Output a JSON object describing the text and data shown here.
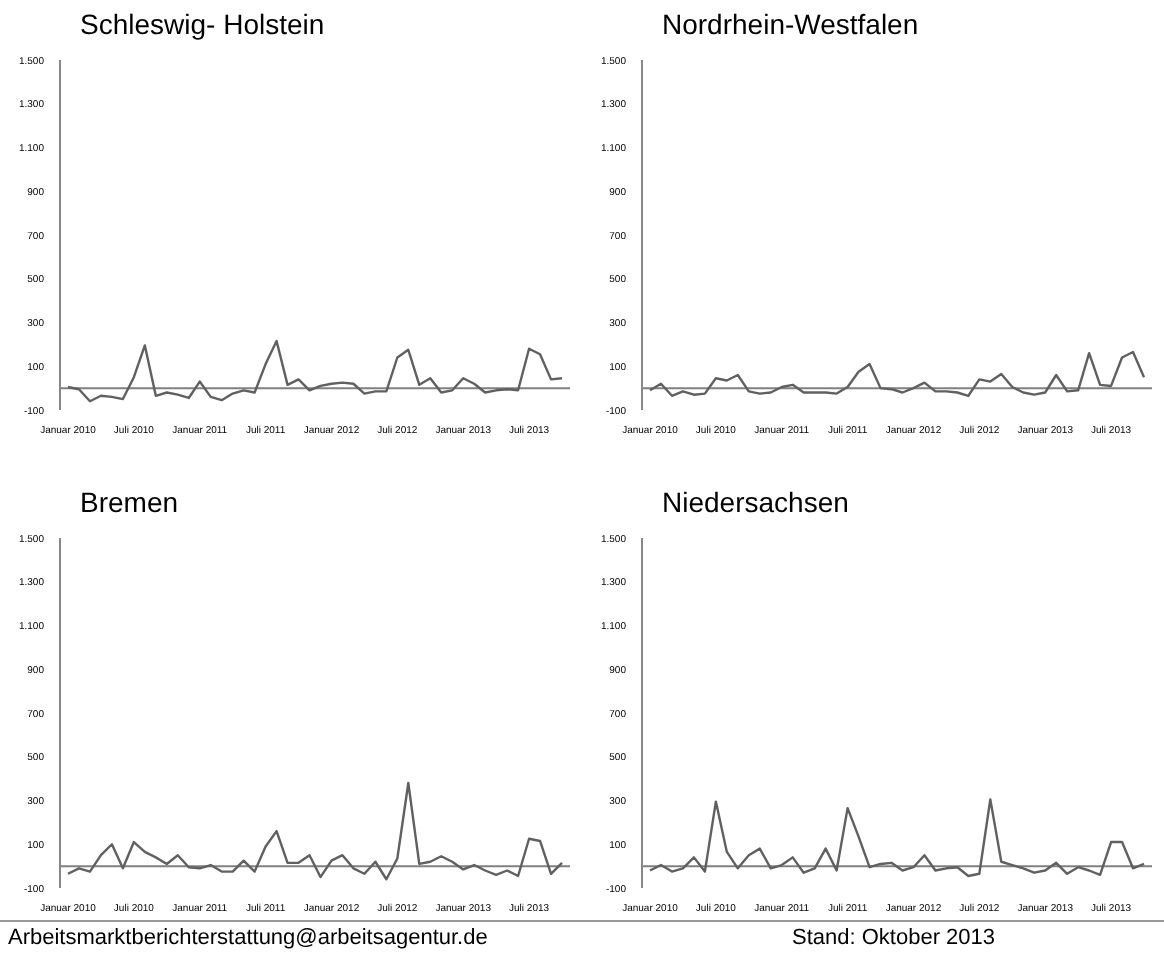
{
  "chart_data": [
    {
      "type": "line",
      "title": "Schleswig- Holstein",
      "categories": [
        "Januar 2010",
        null,
        null,
        null,
        null,
        null,
        "Juli 2010",
        null,
        null,
        null,
        null,
        null,
        "Januar 2011",
        null,
        null,
        null,
        null,
        null,
        "Juli 2011",
        null,
        null,
        null,
        null,
        null,
        "Januar 2012",
        null,
        null,
        null,
        null,
        null,
        "Juli 2012",
        null,
        null,
        null,
        null,
        null,
        "Januar 2013",
        null,
        null,
        null,
        null,
        null,
        "Juli 2013",
        null,
        null,
        null
      ],
      "series": [
        {
          "color": "#606060",
          "values": [
            5,
            -5,
            -60,
            -35,
            -40,
            -50,
            50,
            195,
            -35,
            -20,
            -30,
            -45,
            30,
            -40,
            -55,
            -25,
            -10,
            -20,
            110,
            215,
            15,
            40,
            -10,
            10,
            20,
            25,
            20,
            -25,
            -15,
            -15,
            140,
            175,
            15,
            45,
            -20,
            -10,
            45,
            20,
            -20,
            -10,
            -5,
            -10,
            180,
            155,
            40,
            45
          ]
        }
      ],
      "ylim": [
        -100,
        1500
      ],
      "yticks": [
        {
          "value": -100,
          "label": "-100"
        },
        100,
        300,
        500,
        700,
        900,
        {
          "value": 1100,
          "label": "1.100"
        },
        {
          "value": 1300,
          "label": "1.300"
        },
        {
          "value": 1500,
          "label": "1.500"
        }
      ],
      "ref_lines": [
        {
          "axis": "y",
          "value": 0,
          "color": "#808080"
        }
      ]
    },
    {
      "type": "line",
      "title": "Nordrhein-Westfalen",
      "categories": [
        "Januar 2010",
        null,
        null,
        null,
        null,
        null,
        "Juli 2010",
        null,
        null,
        null,
        null,
        null,
        "Januar 2011",
        null,
        null,
        null,
        null,
        null,
        "Juli 2011",
        null,
        null,
        null,
        null,
        null,
        "Januar 2012",
        null,
        null,
        null,
        null,
        null,
        "Juli 2012",
        null,
        null,
        null,
        null,
        null,
        "Januar 2013",
        null,
        null,
        null,
        null,
        null,
        "Juli 2013",
        null,
        null,
        null
      ],
      "series": [
        {
          "color": "#606060",
          "values": [
            -10,
            20,
            -35,
            -15,
            -30,
            -25,
            45,
            35,
            60,
            -15,
            -25,
            -20,
            5,
            15,
            -20,
            -20,
            -20,
            -25,
            5,
            75,
            110,
            0,
            -5,
            -20,
            0,
            25,
            -15,
            -15,
            -20,
            -35,
            40,
            30,
            65,
            5,
            -20,
            -30,
            -20,
            60,
            -15,
            -10,
            160,
            15,
            10,
            140,
            165,
            50
          ]
        }
      ],
      "ylim": [
        -100,
        1500
      ],
      "yticks": [
        {
          "value": -100,
          "label": "-100"
        },
        100,
        300,
        500,
        700,
        900,
        {
          "value": 1100,
          "label": "1.100"
        },
        {
          "value": 1300,
          "label": "1.300"
        },
        {
          "value": 1500,
          "label": "1.500"
        }
      ],
      "ref_lines": [
        {
          "axis": "y",
          "value": 0,
          "color": "#808080"
        }
      ]
    },
    {
      "type": "line",
      "title": "Bremen",
      "categories": [
        "Januar 2010",
        null,
        null,
        null,
        null,
        null,
        "Juli 2010",
        null,
        null,
        null,
        null,
        null,
        "Januar 2011",
        null,
        null,
        null,
        null,
        null,
        "Juli 2011",
        null,
        null,
        null,
        null,
        null,
        "Januar 2012",
        null,
        null,
        null,
        null,
        null,
        "Juli 2012",
        null,
        null,
        null,
        null,
        null,
        "Januar 2013",
        null,
        null,
        null,
        null,
        null,
        "Juli 2013",
        null,
        null,
        null
      ],
      "series": [
        {
          "color": "#606060",
          "values": [
            -35,
            -10,
            -25,
            50,
            100,
            -10,
            110,
            65,
            40,
            10,
            50,
            -5,
            -10,
            5,
            -25,
            -25,
            25,
            -25,
            90,
            160,
            15,
            15,
            50,
            -50,
            25,
            50,
            -10,
            -35,
            20,
            -60,
            35,
            380,
            10,
            20,
            45,
            20,
            -15,
            5,
            -20,
            -40,
            -20,
            -45,
            125,
            115,
            -35,
            15
          ]
        }
      ],
      "ylim": [
        -100,
        1500
      ],
      "yticks": [
        {
          "value": -100,
          "label": "-100"
        },
        100,
        300,
        500,
        700,
        900,
        {
          "value": 1100,
          "label": "1.100"
        },
        {
          "value": 1300,
          "label": "1.300"
        },
        {
          "value": 1500,
          "label": "1.500"
        }
      ],
      "ref_lines": [
        {
          "axis": "y",
          "value": 0,
          "color": "#808080"
        }
      ],
      "annotations": [
        "Arbeitsmarktberichterstattung@arbeitsagentur.de"
      ]
    },
    {
      "type": "line",
      "title": "Niedersachsen",
      "categories": [
        "Januar 2010",
        null,
        null,
        null,
        null,
        null,
        "Juli 2010",
        null,
        null,
        null,
        null,
        null,
        "Januar 2011",
        null,
        null,
        null,
        null,
        null,
        "Juli 2011",
        null,
        null,
        null,
        null,
        null,
        "Januar 2012",
        null,
        null,
        null,
        null,
        null,
        "Juli 2012",
        null,
        null,
        null,
        null,
        null,
        "Januar 2013",
        null,
        null,
        null,
        null,
        null,
        "Juli 2013",
        null,
        null,
        null
      ],
      "series": [
        {
          "color": "#606060",
          "values": [
            -20,
            5,
            -25,
            -10,
            40,
            -25,
            295,
            65,
            -10,
            50,
            80,
            -10,
            5,
            40,
            -30,
            -10,
            80,
            -20,
            265,
            135,
            -5,
            10,
            15,
            -20,
            -5,
            50,
            -20,
            -10,
            -5,
            -45,
            -35,
            305,
            20,
            5,
            -10,
            -30,
            -20,
            15,
            -35,
            -5,
            -20,
            -40,
            110,
            110,
            -10,
            10
          ]
        }
      ],
      "ylim": [
        -100,
        1500
      ],
      "yticks": [
        {
          "value": -100,
          "label": "-100"
        },
        100,
        300,
        500,
        700,
        900,
        {
          "value": 1100,
          "label": "1.100"
        },
        {
          "value": 1300,
          "label": "1.300"
        },
        {
          "value": 1500,
          "label": "1.500"
        }
      ],
      "ref_lines": [
        {
          "axis": "y",
          "value": 0,
          "color": "#808080"
        }
      ],
      "annotations": [
        "Stand: Oktober 2013"
      ]
    }
  ]
}
